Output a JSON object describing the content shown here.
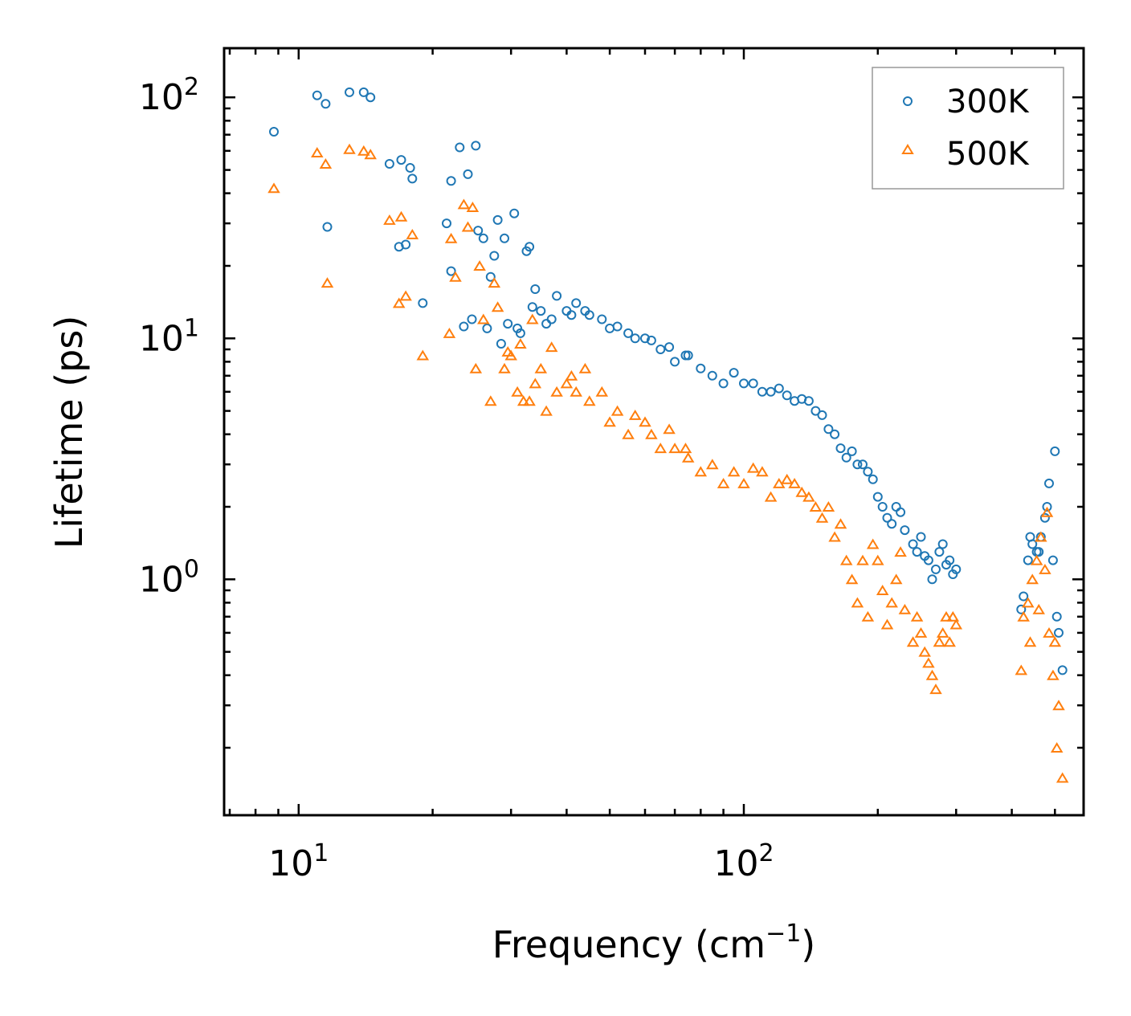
{
  "chart_data": {
    "type": "scatter",
    "xscale": "log",
    "yscale": "log",
    "xlabel": "Frequency (cm",
    "xlabel_unit_exponent": "−1",
    "xlabel_suffix": ")",
    "ylabel": "Lifetime (ps)",
    "xlim": [
      6.8,
      580
    ],
    "ylim": [
      0.105,
      160
    ],
    "xticks": [
      {
        "base": "10",
        "exp": "1",
        "value": 10
      },
      {
        "base": "10",
        "exp": "2",
        "value": 100
      }
    ],
    "yticks": [
      {
        "base": "10",
        "exp": "0",
        "value": 1
      },
      {
        "base": "10",
        "exp": "1",
        "value": 10
      },
      {
        "base": "10",
        "exp": "2",
        "value": 100
      }
    ],
    "legend": {
      "position": "top-right"
    },
    "series": [
      {
        "name": "300K",
        "marker": "circle",
        "color": "#1f77b4",
        "x": [
          8.8,
          11.0,
          11.5,
          13.0,
          14.0,
          14.5,
          11.6,
          16.0,
          17.0,
          17.8,
          18.0,
          16.8,
          17.4,
          19.0,
          22.0,
          22.0,
          23.0,
          24.0,
          25.0,
          25.3,
          21.5,
          26.0,
          27.0,
          28.0,
          29.0,
          30.5,
          31.0,
          32.5,
          33.0,
          34.0,
          35.0,
          36.0,
          38.0,
          40.0,
          42.0,
          45.0,
          50.0,
          55.0,
          60.0,
          65.0,
          70.0,
          75.0,
          80.0,
          90.0,
          100.0,
          110.0,
          120.0,
          130.0,
          140.0,
          150.0,
          160.0,
          170.0,
          180.0,
          190.0,
          200.0,
          210.0,
          220.0,
          230.0,
          240.0,
          250.0,
          260.0,
          270.0,
          280.0,
          290.0,
          300.0,
          420.0,
          440.0,
          460.0,
          480.0,
          500.0,
          510.0,
          520.0,
          26.5,
          28.5,
          31.5,
          24.5,
          23.5,
          29.5,
          27.5,
          33.5,
          37.0,
          41.0,
          44.0,
          48.0,
          52.0,
          57.0,
          62.0,
          68.0,
          74.0,
          85.0,
          95.0,
          105.0,
          115.0,
          125.0,
          135.0,
          145.0,
          155.0,
          165.0,
          175.0,
          185.0,
          195.0,
          205.0,
          215.0,
          225.0,
          245.0,
          255.0,
          265.0,
          275.0,
          285.0,
          295.0,
          425.0,
          435.0,
          445.0,
          455.0,
          465.0,
          475.0,
          485.0,
          495.0,
          505.0
        ],
        "y": [
          72,
          102,
          94,
          105,
          105,
          100,
          29,
          53,
          55,
          51,
          46,
          24,
          24.5,
          14,
          45,
          19,
          62,
          48,
          63,
          28,
          30,
          26,
          18,
          31,
          26,
          33,
          11,
          23,
          24,
          16,
          13,
          11.5,
          15,
          13,
          14,
          12.5,
          11,
          10.5,
          10,
          9,
          8,
          8.5,
          7.5,
          6.5,
          6.5,
          6,
          6.2,
          5.5,
          5.5,
          4.8,
          4,
          3.2,
          3,
          2.8,
          2.2,
          1.8,
          2,
          1.6,
          1.4,
          1.5,
          1.2,
          1.1,
          1.4,
          1.2,
          1.1,
          0.75,
          1.5,
          1.3,
          2,
          3.4,
          0.6,
          0.42,
          11,
          9.5,
          10.5,
          12,
          11.2,
          11.5,
          22,
          13.5,
          12,
          12.5,
          13,
          12,
          11.2,
          10,
          9.8,
          9.2,
          8.5,
          7.0,
          7.2,
          6.5,
          6.0,
          5.8,
          5.6,
          5.0,
          4.2,
          3.5,
          3.4,
          3.0,
          2.6,
          2.0,
          1.7,
          1.9,
          1.3,
          1.25,
          1.0,
          1.3,
          1.15,
          1.05,
          0.85,
          1.2,
          1.4,
          1.3,
          1.5,
          1.8,
          2.5,
          1.2,
          0.7
        ]
      },
      {
        "name": "500K",
        "marker": "triangle",
        "color": "#ff7f0e",
        "x": [
          8.8,
          11.0,
          11.5,
          11.6,
          13.0,
          14.0,
          14.5,
          16.0,
          17.0,
          17.4,
          18.0,
          16.8,
          19.0,
          22.0,
          22.5,
          21.8,
          23.5,
          24.0,
          24.6,
          25.0,
          25.5,
          26.0,
          27.0,
          28.0,
          29.0,
          30.0,
          31.0,
          32.0,
          33.0,
          34.0,
          35.0,
          36.0,
          38.0,
          40.0,
          42.0,
          45.0,
          50.0,
          55.0,
          60.0,
          65.0,
          70.0,
          75.0,
          80.0,
          90.0,
          100.0,
          110.0,
          120.0,
          130.0,
          140.0,
          150.0,
          160.0,
          170.0,
          180.0,
          190.0,
          200.0,
          210.0,
          220.0,
          230.0,
          240.0,
          250.0,
          260.0,
          270.0,
          280.0,
          290.0,
          300.0,
          420.0,
          440.0,
          460.0,
          480.0,
          500.0,
          510.0,
          520.0,
          27.5,
          29.5,
          31.5,
          33.5,
          37.0,
          41.0,
          44.0,
          48.0,
          52.0,
          57.0,
          62.0,
          68.0,
          74.0,
          85.0,
          95.0,
          105.0,
          115.0,
          125.0,
          135.0,
          145.0,
          155.0,
          165.0,
          175.0,
          185.0,
          195.0,
          205.0,
          215.0,
          225.0,
          245.0,
          255.0,
          265.0,
          275.0,
          285.0,
          295.0,
          425.0,
          435.0,
          445.0,
          455.0,
          465.0,
          475.0,
          485.0,
          495.0,
          505.0
        ],
        "y": [
          42,
          59,
          53,
          17,
          61,
          60,
          58,
          31,
          32,
          15,
          27,
          14,
          8.5,
          26,
          18,
          10.5,
          36,
          29,
          35,
          7.5,
          20,
          12,
          5.5,
          13.5,
          7.5,
          8.5,
          6,
          5.5,
          5.5,
          6.5,
          7.5,
          5.0,
          6.0,
          6.5,
          6.0,
          5.5,
          4.5,
          4.0,
          4.5,
          3.5,
          3.5,
          3.2,
          2.8,
          2.5,
          2.5,
          2.8,
          2.5,
          2.5,
          2.2,
          1.8,
          1.5,
          1.2,
          0.8,
          0.7,
          1.2,
          0.65,
          1.0,
          0.75,
          0.55,
          0.6,
          0.45,
          0.35,
          0.6,
          0.55,
          0.65,
          0.42,
          0.55,
          0.75,
          1.9,
          0.55,
          0.3,
          0.15,
          17,
          8.8,
          9.5,
          12.0,
          9.2,
          7.0,
          7.5,
          6.0,
          5.0,
          4.8,
          4.0,
          4.2,
          3.5,
          3.0,
          2.8,
          2.9,
          2.2,
          2.6,
          2.3,
          2.0,
          2.0,
          1.7,
          1.0,
          1.2,
          1.4,
          0.9,
          0.8,
          1.3,
          0.7,
          0.5,
          0.4,
          0.55,
          0.7,
          0.7,
          0.7,
          0.8,
          1.0,
          1.2,
          1.5,
          1.1,
          0.6,
          0.4,
          0.2
        ]
      }
    ]
  }
}
